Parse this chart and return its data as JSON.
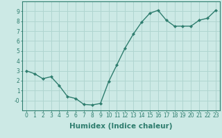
{
  "x": [
    0,
    1,
    2,
    3,
    4,
    5,
    6,
    7,
    8,
    9,
    10,
    11,
    12,
    13,
    14,
    15,
    16,
    17,
    18,
    19,
    20,
    21,
    22,
    23
  ],
  "y": [
    3.0,
    2.7,
    2.2,
    2.4,
    1.5,
    0.4,
    0.2,
    -0.4,
    -0.45,
    -0.3,
    1.9,
    3.6,
    5.3,
    6.7,
    7.9,
    8.8,
    9.1,
    8.1,
    7.5,
    7.5,
    7.5,
    8.1,
    8.3,
    9.1
  ],
  "line_color": "#2e7d6e",
  "marker": "D",
  "marker_size": 2.2,
  "bg_color": "#cce9e5",
  "grid_color": "#b0d5d0",
  "xlabel": "Humidex (Indice chaleur)",
  "xlim": [
    -0.5,
    23.5
  ],
  "ylim": [
    -1.0,
    10.0
  ],
  "xticks": [
    0,
    1,
    2,
    3,
    4,
    5,
    6,
    7,
    8,
    9,
    10,
    11,
    12,
    13,
    14,
    15,
    16,
    17,
    18,
    19,
    20,
    21,
    22,
    23
  ],
  "yticks": [
    0,
    1,
    2,
    3,
    4,
    5,
    6,
    7,
    8,
    9
  ],
  "ytick_labels": [
    "-0",
    "1",
    "2",
    "3",
    "4",
    "5",
    "6",
    "7",
    "8",
    "9"
  ],
  "tick_fontsize": 5.5,
  "xlabel_fontsize": 7.5,
  "line_width": 1.0
}
